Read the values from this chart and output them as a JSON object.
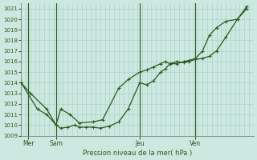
{
  "title": "Pression niveau de la mer( hPa )",
  "bg_color": "#cce8e0",
  "grid_color": "#a8ccc4",
  "line_color": "#2d5a1e",
  "ylim": [
    1009,
    1021.5
  ],
  "yticks": [
    1009,
    1010,
    1011,
    1012,
    1013,
    1014,
    1015,
    1016,
    1017,
    1018,
    1019,
    1020,
    1021
  ],
  "xlim": [
    0,
    5.0
  ],
  "xtick_positions": [
    0.15,
    0.75,
    2.55,
    3.75
  ],
  "xtick_labels": [
    "Mer",
    "Sam",
    "Jeu",
    "Ven"
  ],
  "vline_positions": [
    0.15,
    0.75,
    2.55,
    3.75
  ],
  "line1_x": [
    0.0,
    0.2,
    0.55,
    0.75,
    0.85,
    1.0,
    1.15,
    1.25,
    1.4,
    1.55,
    1.7,
    1.9,
    2.1,
    2.3,
    2.55,
    2.7,
    2.85,
    3.0,
    3.1,
    3.2,
    3.35,
    3.5,
    3.6,
    3.75,
    3.9,
    4.05,
    4.2,
    4.4,
    4.65,
    4.85
  ],
  "line1_y": [
    1014,
    1013,
    1011.5,
    1010,
    1009.7,
    1009.8,
    1010.0,
    1009.8,
    1009.8,
    1009.8,
    1009.7,
    1009.9,
    1010.3,
    1011.5,
    1014,
    1013.8,
    1014.2,
    1015.0,
    1015.3,
    1015.8,
    1016.0,
    1015.9,
    1016.0,
    1016.2,
    1016.3,
    1016.5,
    1017.0,
    1018.3,
    1020.0,
    1021.0
  ],
  "line2_x": [
    0.0,
    0.35,
    0.55,
    0.75,
    0.85,
    1.05,
    1.25,
    1.55,
    1.75,
    2.1,
    2.3,
    2.55,
    2.7,
    2.85,
    3.0,
    3.1,
    3.2,
    3.35,
    3.5,
    3.6,
    3.75,
    3.9,
    4.05,
    4.2,
    4.4,
    4.65,
    4.85
  ],
  "line2_y": [
    1014,
    1011.5,
    1011.0,
    1010.0,
    1011.5,
    1011.0,
    1010.2,
    1010.3,
    1010.5,
    1013.5,
    1014.3,
    1015.0,
    1015.2,
    1015.5,
    1015.8,
    1016.0,
    1015.8,
    1015.8,
    1016.0,
    1016.1,
    1016.3,
    1017.0,
    1018.5,
    1019.2,
    1019.8,
    1020.0,
    1021.2
  ]
}
